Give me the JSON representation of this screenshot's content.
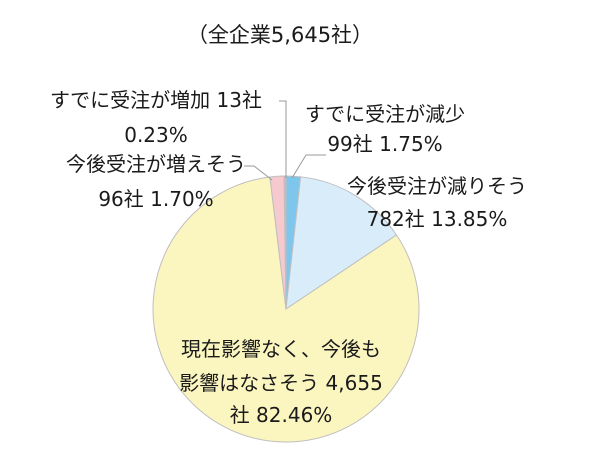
{
  "chart_data": {
    "type": "pie",
    "title": "（全企業5,645社）",
    "total": 5645,
    "slices": [
      {
        "key": "already_decrease",
        "lines": [
          "すでに受注が減少",
          "99社 1.75%"
        ],
        "value": 99,
        "percent": 1.75,
        "color": "#7fc6ec"
      },
      {
        "key": "will_decrease",
        "lines": [
          "今後受注が減りそう",
          "782社 13.85%"
        ],
        "value": 782,
        "percent": 13.85,
        "color": "#d9ecfa"
      },
      {
        "key": "no_impact",
        "lines": [
          "現在影響なく、今後も",
          "影響はなさそう 4,655",
          "社 82.46%"
        ],
        "value": 4655,
        "percent": 82.46,
        "color": "#fbf5c0"
      },
      {
        "key": "will_increase",
        "lines": [
          "今後受注が増えそう",
          "96社 1.70%"
        ],
        "value": 96,
        "percent": 1.7,
        "color": "#f6c9cf"
      },
      {
        "key": "already_increase",
        "lines": [
          "すでに受注が増加 13社",
          "0.23%"
        ],
        "value": 13,
        "percent": 0.23,
        "color": "#f2a4ad"
      }
    ]
  }
}
